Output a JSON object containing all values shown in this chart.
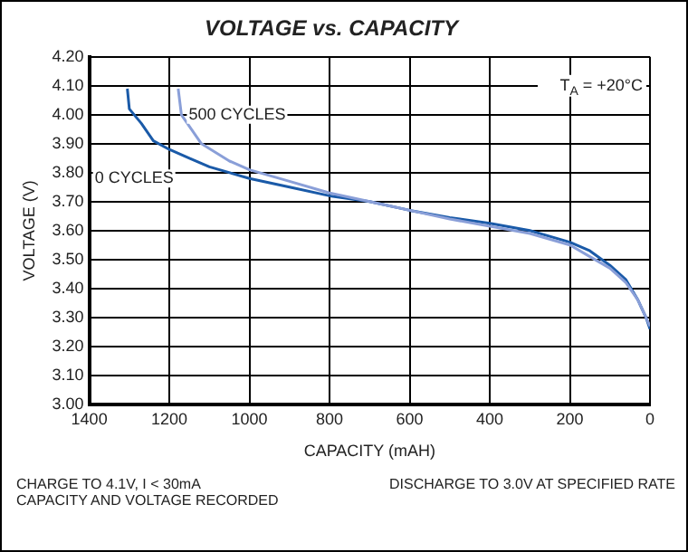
{
  "chart_data": {
    "type": "line",
    "title": "VOLTAGE vs. CAPACITY",
    "xlabel": "CAPACITY (mAH)",
    "ylabel": "VOLTAGE (V)",
    "xlim": [
      1400,
      0
    ],
    "xticks": [
      1400,
      1200,
      1000,
      800,
      600,
      400,
      200,
      0
    ],
    "ylim": [
      3.0,
      4.2
    ],
    "yticks": [
      {
        "value": 3.0,
        "label": "3.00"
      },
      {
        "value": 3.1,
        "label": "3.10"
      },
      {
        "value": 3.2,
        "label": "3.20"
      },
      {
        "value": 3.3,
        "label": "3.30"
      },
      {
        "value": 3.4,
        "label": "3.40"
      },
      {
        "value": 3.5,
        "label": "3.50"
      },
      {
        "value": 3.6,
        "label": "3.60"
      },
      {
        "value": 3.7,
        "label": "3.70"
      },
      {
        "value": 3.8,
        "label": "3.80"
      },
      {
        "value": 3.9,
        "label": "3.90"
      },
      {
        "value": 4.0,
        "label": "4.00"
      },
      {
        "value": 4.1,
        "label": "4.10"
      },
      {
        "value": 4.2,
        "label": "4.20"
      }
    ],
    "grid": true,
    "legend": false,
    "series": [
      {
        "name": "500 CYCLES",
        "color": "#8a9fd8",
        "x": [
          1178,
          1170,
          1120,
          1050,
          1000,
          900,
          800,
          700,
          600,
          500,
          400,
          300,
          200,
          150,
          100,
          60,
          30,
          0
        ],
        "values": [
          4.09,
          4.0,
          3.9,
          3.84,
          3.81,
          3.77,
          3.73,
          3.7,
          3.67,
          3.64,
          3.615,
          3.59,
          3.55,
          3.51,
          3.47,
          3.42,
          3.36,
          3.27
        ]
      },
      {
        "name": "0 CYCLES",
        "color": "#1a5aa8",
        "x": [
          1305,
          1300,
          1270,
          1240,
          1200,
          1150,
          1100,
          1000,
          900,
          800,
          700,
          600,
          500,
          400,
          300,
          200,
          150,
          100,
          60,
          30,
          10,
          0
        ],
        "values": [
          4.09,
          4.02,
          3.97,
          3.91,
          3.88,
          3.85,
          3.82,
          3.78,
          3.75,
          3.72,
          3.7,
          3.67,
          3.645,
          3.625,
          3.6,
          3.56,
          3.53,
          3.48,
          3.43,
          3.36,
          3.3,
          3.26
        ]
      }
    ],
    "annotations": [
      "T$_{A}$ = +20°C",
      "CHARGE TO 4.1V, I < 30mA",
      "CAPACITY AND VOLTAGE RECORDED",
      "DISCHARGE TO 3.0V AT SPECIFIED RATE"
    ]
  }
}
